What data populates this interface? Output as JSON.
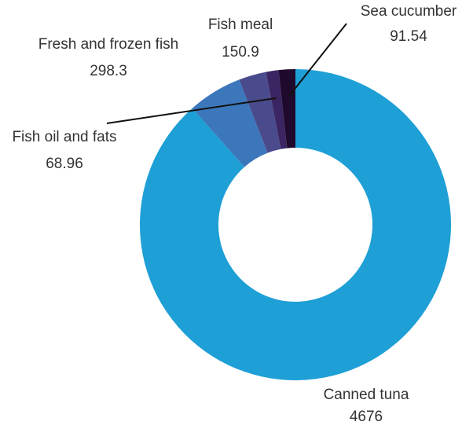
{
  "chart_data": {
    "type": "pie",
    "donut": true,
    "title": "",
    "slices": [
      {
        "label": "Canned tuna",
        "value": 4676,
        "value_label": "4676",
        "color": "#1e9fd6"
      },
      {
        "label": "Fresh and frozen fish",
        "value": 298.3,
        "value_label": "298.3",
        "color": "#3c77bb"
      },
      {
        "label": "Fish meal",
        "value": 150.9,
        "value_label": "150.9",
        "color": "#4a4b8c"
      },
      {
        "label": "Fish oil and fats",
        "value": 68.96,
        "value_label": "68.96",
        "color": "#3b2663"
      },
      {
        "label": "Sea cucumber",
        "value": 91.54,
        "value_label": "91.54",
        "color": "#1f0a2e"
      }
    ],
    "legend": "none"
  }
}
